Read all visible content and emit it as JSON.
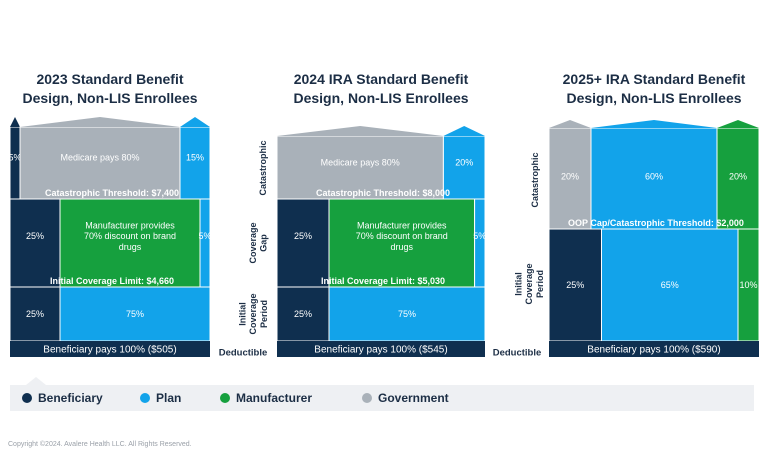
{
  "titles": [
    {
      "line1": "2023 Standard Benefit",
      "line2": "Design, Non-LIS Enrollees"
    },
    {
      "line1": "2024 IRA Standard Benefit",
      "line2": "Design, Non-LIS Enrollees"
    },
    {
      "line1": "2025+ IRA Standard Benefit",
      "line2": "Design, Non-LIS Enrollees"
    }
  ],
  "phase_labels": {
    "catastrophic": "Catastrophic",
    "coverage_gap": "Coverage Gap",
    "initial_coverage": "Initial Coverage Period",
    "deductible": "Deductible"
  },
  "legend": [
    {
      "label": "Beneficiary",
      "color": "#0f2f4f"
    },
    {
      "label": "Plan",
      "color": "#12a3ea"
    },
    {
      "label": "Manufacturer",
      "color": "#16a03e"
    },
    {
      "label": "Government",
      "color": "#a9b1b9"
    }
  ],
  "copyright": "Copyright ©2024. Avalere Health LLC. All Rights Reserved.",
  "chart_data": [
    {
      "type": "bar",
      "title": "2023 Standard Benefit Design, Non-LIS Enrollees",
      "deductible_text": "Beneficiary pays 100% ($505)",
      "phases": [
        {
          "name": "Catastrophic",
          "segments": [
            {
              "party": "Beneficiary",
              "value": 5,
              "label": "5%"
            },
            {
              "party": "Government",
              "value": 80,
              "label": "Medicare pays 80%"
            },
            {
              "party": "Plan",
              "value": 15,
              "label": "15%"
            }
          ],
          "threshold": "Catastrophic Threshold: $7,400"
        },
        {
          "name": "Coverage Gap",
          "segments": [
            {
              "party": "Beneficiary",
              "value": 25,
              "label": "25%"
            },
            {
              "party": "Manufacturer",
              "value": 70,
              "label": "Manufacturer provides 70% discount on brand drugs"
            },
            {
              "party": "Plan",
              "value": 5,
              "label": "5%"
            }
          ],
          "threshold": "Initial Coverage Limit: $4,660"
        },
        {
          "name": "Initial Coverage Period",
          "segments": [
            {
              "party": "Beneficiary",
              "value": 25,
              "label": "25%"
            },
            {
              "party": "Plan",
              "value": 75,
              "label": "75%"
            }
          ]
        }
      ]
    },
    {
      "type": "bar",
      "title": "2024 IRA Standard Benefit Design, Non-LIS Enrollees",
      "deductible_text": "Beneficiary pays 100% ($545)",
      "phases": [
        {
          "name": "Catastrophic",
          "segments": [
            {
              "party": "Government",
              "value": 80,
              "label": "Medicare pays 80%"
            },
            {
              "party": "Plan",
              "value": 20,
              "label": "20%"
            }
          ],
          "threshold": "Catastrophic Threshold: $8,000"
        },
        {
          "name": "Coverage Gap",
          "segments": [
            {
              "party": "Beneficiary",
              "value": 25,
              "label": "25%"
            },
            {
              "party": "Manufacturer",
              "value": 70,
              "label": "Manufacturer provides 70% discount on brand drugs"
            },
            {
              "party": "Plan",
              "value": 5,
              "label": "5%"
            }
          ],
          "threshold": "Initial Coverage Limit: $5,030"
        },
        {
          "name": "Initial Coverage Period",
          "segments": [
            {
              "party": "Beneficiary",
              "value": 25,
              "label": "25%"
            },
            {
              "party": "Plan",
              "value": 75,
              "label": "75%"
            }
          ]
        }
      ]
    },
    {
      "type": "bar",
      "title": "2025+ IRA Standard Benefit Design, Non-LIS Enrollees",
      "deductible_text": "Beneficiary pays 100% ($590)",
      "phases": [
        {
          "name": "Catastrophic",
          "segments": [
            {
              "party": "Government",
              "value": 20,
              "label": "20%"
            },
            {
              "party": "Plan",
              "value": 60,
              "label": "60%"
            },
            {
              "party": "Manufacturer",
              "value": 20,
              "label": "20%"
            }
          ],
          "threshold": "OOP Cap/Catastrophic Threshold: $2,000"
        },
        {
          "name": "Initial Coverage Period",
          "segments": [
            {
              "party": "Beneficiary",
              "value": 25,
              "label": "25%"
            },
            {
              "party": "Plan",
              "value": 65,
              "label": "65%"
            },
            {
              "party": "Manufacturer",
              "value": 10,
              "label": "10%"
            }
          ]
        }
      ]
    }
  ]
}
